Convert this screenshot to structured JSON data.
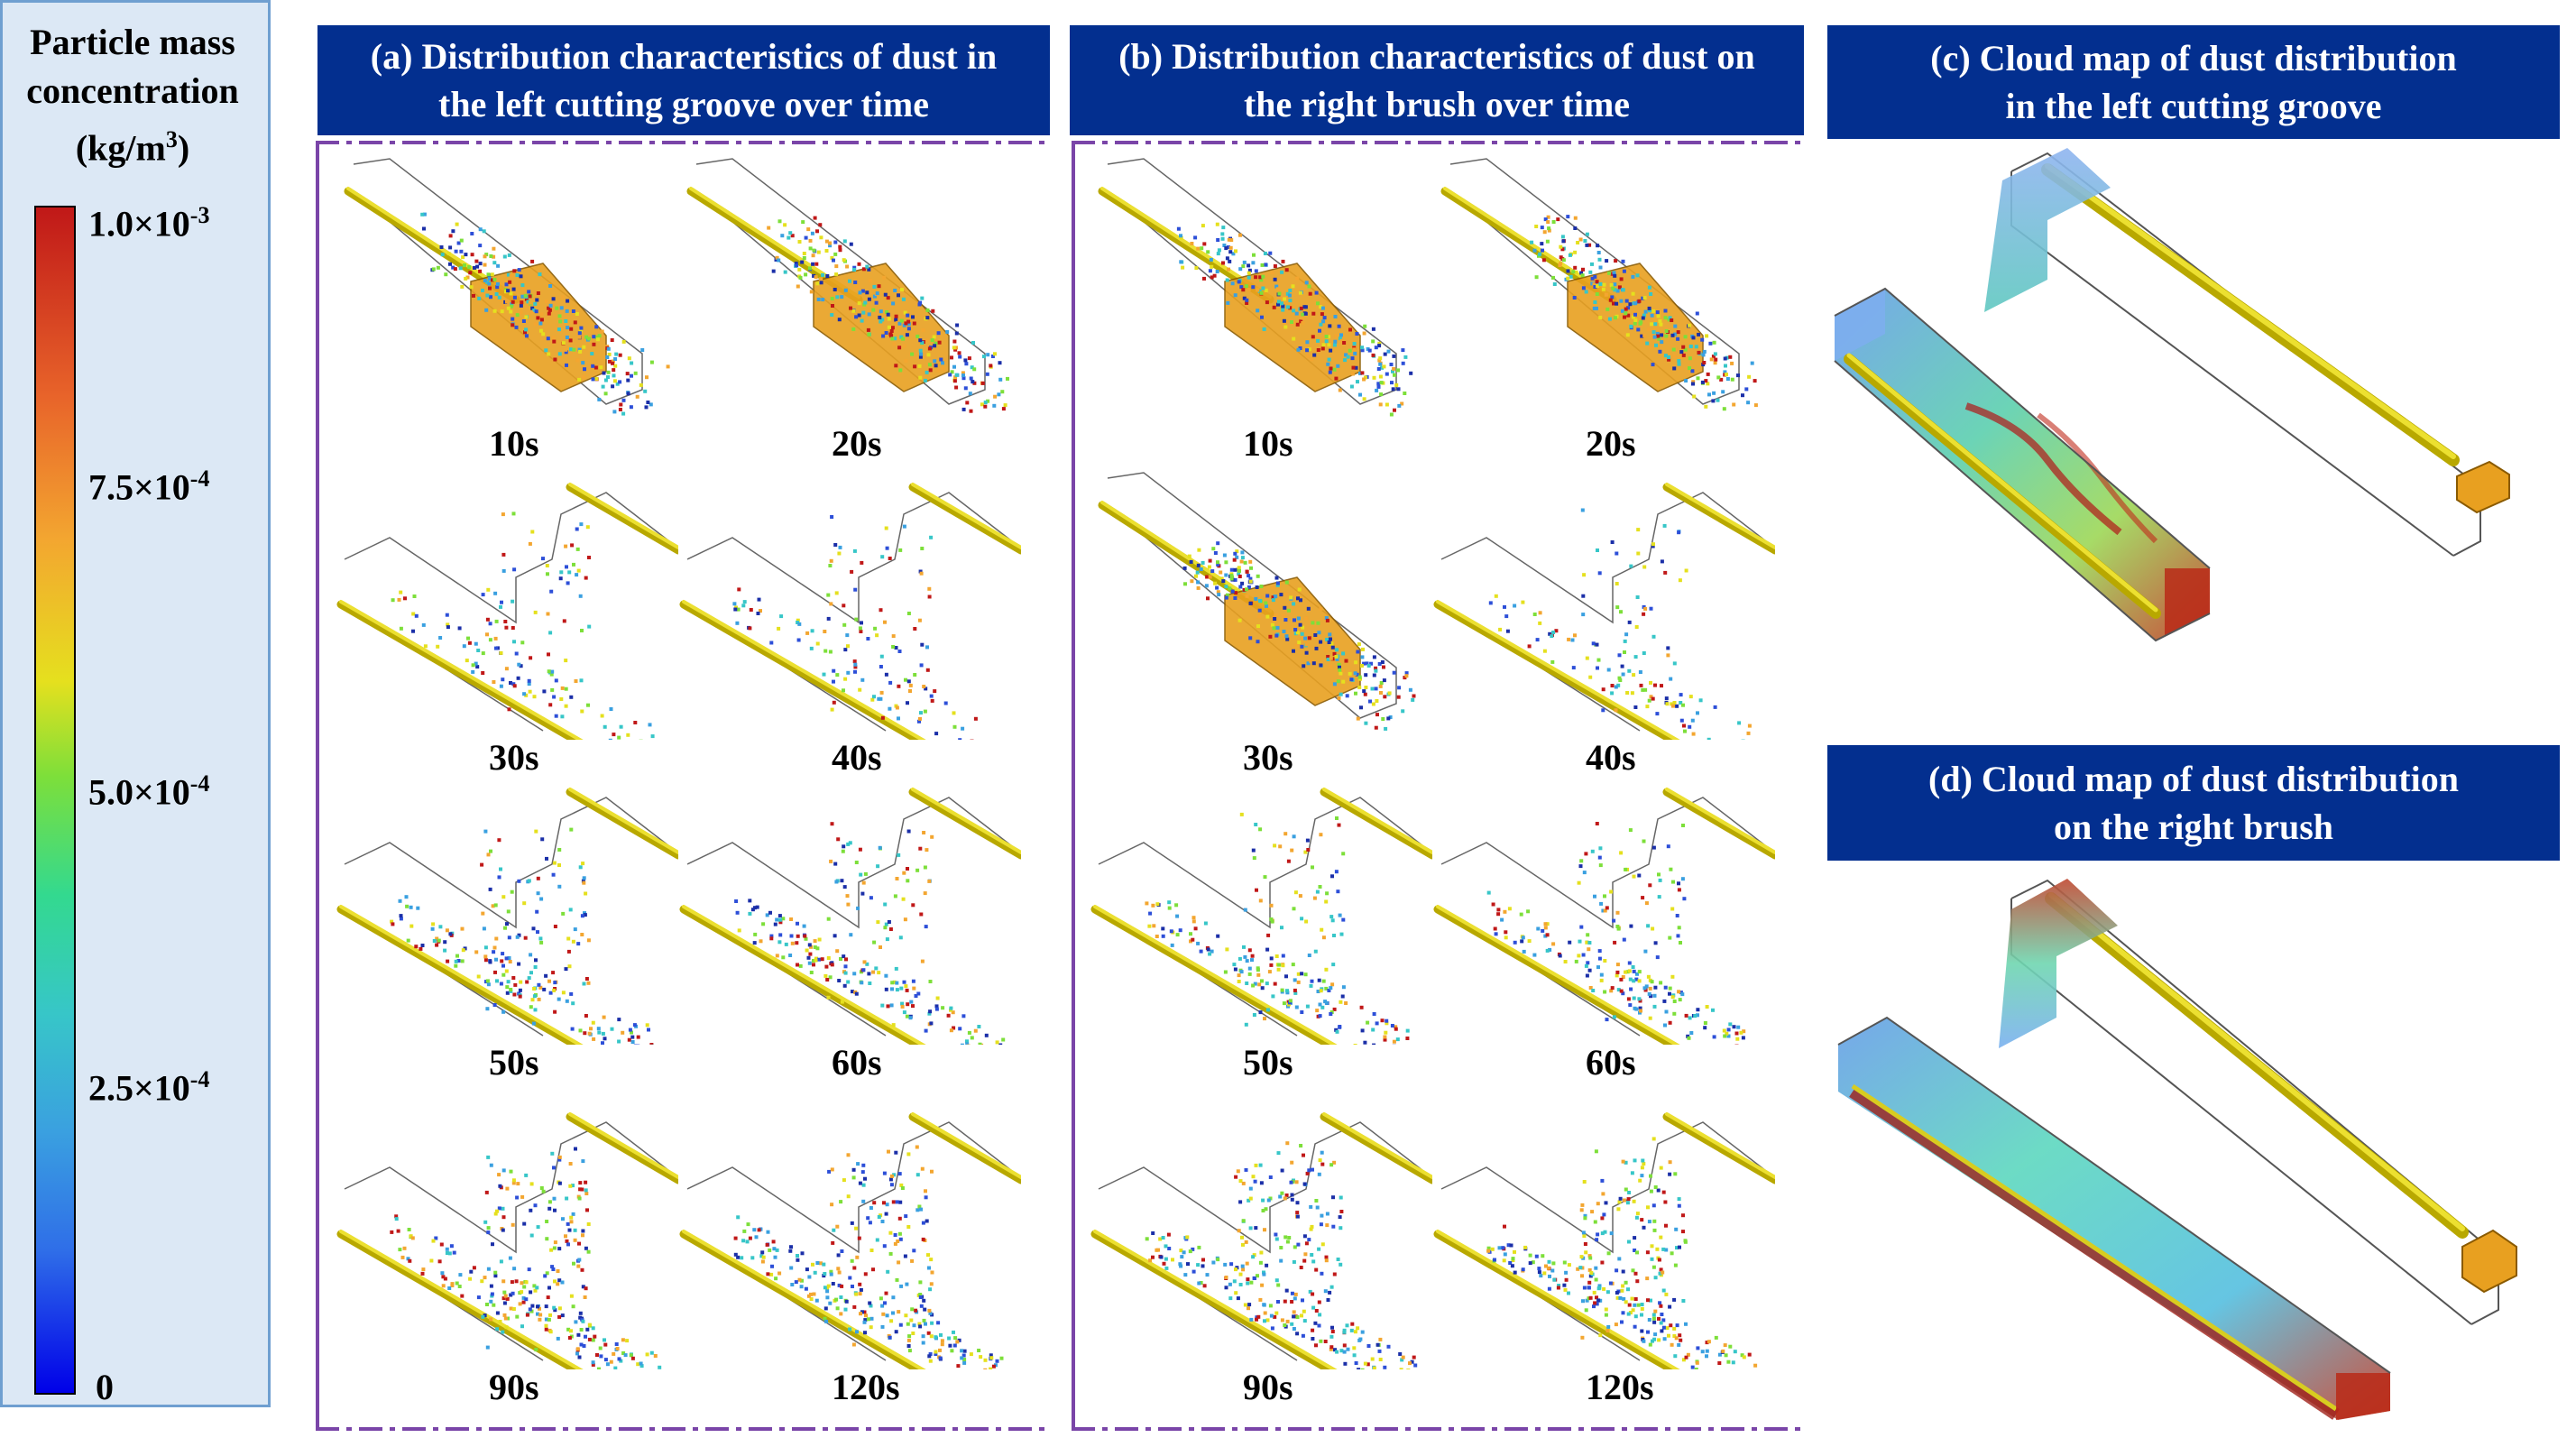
{
  "legend": {
    "title_line1": "Particle mass",
    "title_line2": "concentration",
    "title_line3": "(kg/m",
    "title_sup": "3",
    "title_close": ")",
    "ticks": [
      {
        "mant": "1.0",
        "exp": "-3",
        "value": 0.001
      },
      {
        "mant": "7.5",
        "exp": "-4",
        "value": 0.00075
      },
      {
        "mant": "5.0",
        "exp": "-4",
        "value": 0.0005
      },
      {
        "mant": "2.5",
        "exp": "-4",
        "value": 0.00025
      },
      {
        "mant": "0",
        "exp": "",
        "value": 0
      }
    ],
    "colors": [
      "#0000e8",
      "#37c6c8",
      "#7ddf3a",
      "#e5e01e",
      "#f3a630",
      "#c01818"
    ]
  },
  "panels": {
    "a": {
      "title_line1": "(a) Distribution characteristics of dust in",
      "title_line2": "the left cutting groove over time",
      "times": [
        "10s",
        "20s",
        "30s",
        "40s",
        "50s",
        "60s",
        "90s",
        "120s"
      ]
    },
    "b": {
      "title_line1": "(b) Distribution characteristics of dust on",
      "title_line2": "the right brush over time",
      "times": [
        "10s",
        "20s",
        "30s",
        "40s",
        "50s",
        "60s",
        "90s",
        "120s"
      ]
    },
    "c": {
      "title_line1": "(c) Cloud map of dust distribution",
      "title_line2": "in the left cutting groove"
    },
    "d": {
      "title_line1": "(d) Cloud map of dust distribution",
      "title_line2": "on the right brush"
    }
  },
  "colors": {
    "header_bg": "#032f8f",
    "frame": "#7a45a8",
    "legend_bg": "#dce8f5",
    "rod": "#e4d400",
    "machine": "#e8a020"
  }
}
